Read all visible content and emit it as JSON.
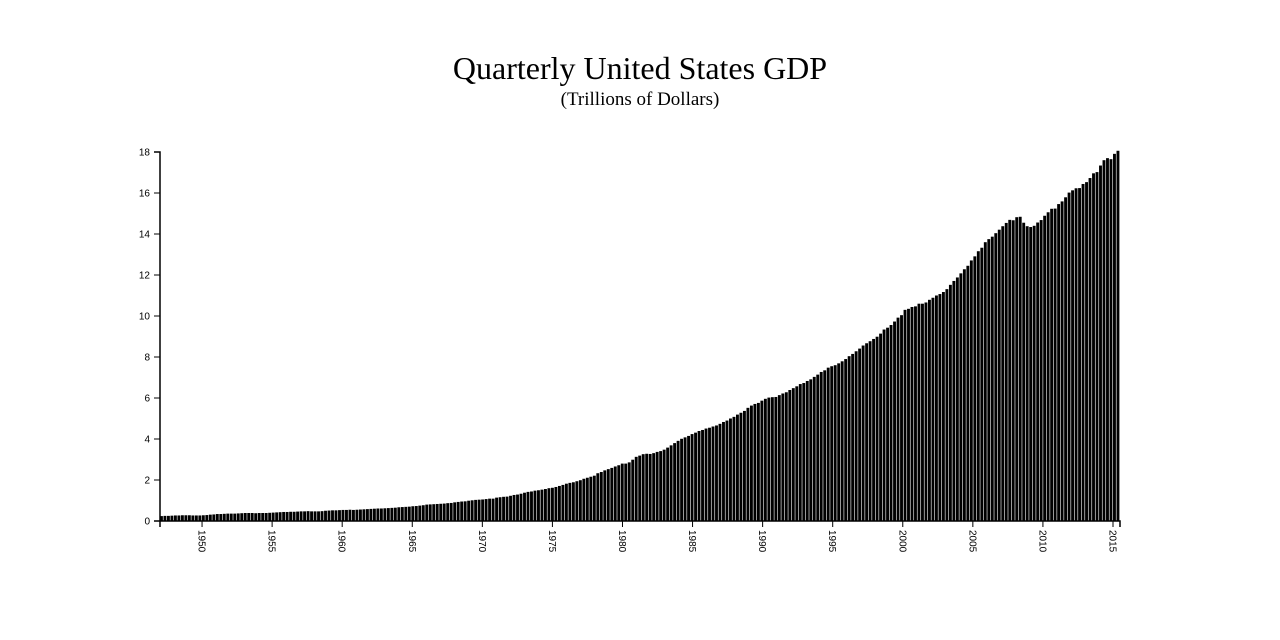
{
  "chart_data": {
    "type": "bar",
    "title": "Quarterly United States GDP",
    "subtitle": "(Trillions of Dollars)",
    "xlabel": "",
    "ylabel": "",
    "x_start": "1947 Q1",
    "x_end": "2015 Q3",
    "x_ticks": [
      "1950",
      "1955",
      "1960",
      "1965",
      "1970",
      "1975",
      "1980",
      "1985",
      "1990",
      "1995",
      "2000",
      "2005",
      "2010",
      "2015"
    ],
    "y_ticks": [
      "0",
      "2",
      "4",
      "6",
      "8",
      "10",
      "12",
      "14",
      "16",
      "18"
    ],
    "ylim": [
      0,
      18
    ],
    "grid": false,
    "bar_color": "#000000",
    "values": [
      0.24,
      0.25,
      0.25,
      0.26,
      0.27,
      0.27,
      0.28,
      0.28,
      0.28,
      0.27,
      0.27,
      0.27,
      0.28,
      0.29,
      0.31,
      0.32,
      0.34,
      0.34,
      0.35,
      0.36,
      0.36,
      0.36,
      0.37,
      0.38,
      0.39,
      0.39,
      0.39,
      0.38,
      0.39,
      0.39,
      0.39,
      0.4,
      0.41,
      0.42,
      0.43,
      0.44,
      0.44,
      0.45,
      0.45,
      0.46,
      0.47,
      0.47,
      0.48,
      0.47,
      0.47,
      0.47,
      0.48,
      0.5,
      0.51,
      0.52,
      0.52,
      0.53,
      0.54,
      0.54,
      0.55,
      0.54,
      0.55,
      0.56,
      0.57,
      0.58,
      0.59,
      0.6,
      0.61,
      0.61,
      0.62,
      0.63,
      0.64,
      0.65,
      0.67,
      0.68,
      0.69,
      0.7,
      0.72,
      0.73,
      0.75,
      0.77,
      0.8,
      0.81,
      0.82,
      0.83,
      0.84,
      0.85,
      0.87,
      0.88,
      0.91,
      0.93,
      0.95,
      0.96,
      0.99,
      1.01,
      1.03,
      1.04,
      1.05,
      1.07,
      1.09,
      1.09,
      1.14,
      1.16,
      1.18,
      1.19,
      1.23,
      1.27,
      1.29,
      1.33,
      1.38,
      1.42,
      1.44,
      1.48,
      1.5,
      1.53,
      1.56,
      1.6,
      1.62,
      1.66,
      1.71,
      1.76,
      1.82,
      1.86,
      1.89,
      1.94,
      1.99,
      2.06,
      2.11,
      2.16,
      2.21,
      2.33,
      2.39,
      2.47,
      2.53,
      2.59,
      2.66,
      2.72,
      2.8,
      2.8,
      2.86,
      2.99,
      3.13,
      3.19,
      3.26,
      3.28,
      3.27,
      3.31,
      3.37,
      3.41,
      3.48,
      3.58,
      3.69,
      3.8,
      3.91,
      4.01,
      4.08,
      4.15,
      4.24,
      4.31,
      4.39,
      4.44,
      4.51,
      4.55,
      4.61,
      4.66,
      4.74,
      4.83,
      4.9,
      5.0,
      5.08,
      5.19,
      5.28,
      5.37,
      5.52,
      5.63,
      5.71,
      5.76,
      5.87,
      5.96,
      6.02,
      6.04,
      6.05,
      6.14,
      6.22,
      6.28,
      6.39,
      6.48,
      6.57,
      6.68,
      6.73,
      6.83,
      6.91,
      7.03,
      7.14,
      7.27,
      7.35,
      7.48,
      7.55,
      7.6,
      7.69,
      7.79,
      7.9,
      8.04,
      8.15,
      8.28,
      8.41,
      8.56,
      8.67,
      8.77,
      8.88,
      8.99,
      9.14,
      9.34,
      9.43,
      9.56,
      9.73,
      9.92,
      10.04,
      10.3,
      10.35,
      10.44,
      10.47,
      10.6,
      10.6,
      10.66,
      10.79,
      10.89,
      11.0,
      11.07,
      11.17,
      11.31,
      11.52,
      11.71,
      11.88,
      12.08,
      12.28,
      12.45,
      12.71,
      12.91,
      13.16,
      13.33,
      13.6,
      13.75,
      13.87,
      14.04,
      14.21,
      14.38,
      14.54,
      14.69,
      14.67,
      14.82,
      14.84,
      14.55,
      14.38,
      14.34,
      14.4,
      14.56,
      14.68,
      14.89,
      15.06,
      15.23,
      15.24,
      15.46,
      15.59,
      15.79,
      16.02,
      16.13,
      16.23,
      16.24,
      16.44,
      16.53,
      16.73,
      16.96,
      17.02,
      17.34,
      17.6,
      17.7,
      17.65,
      17.91,
      18.06
    ]
  }
}
